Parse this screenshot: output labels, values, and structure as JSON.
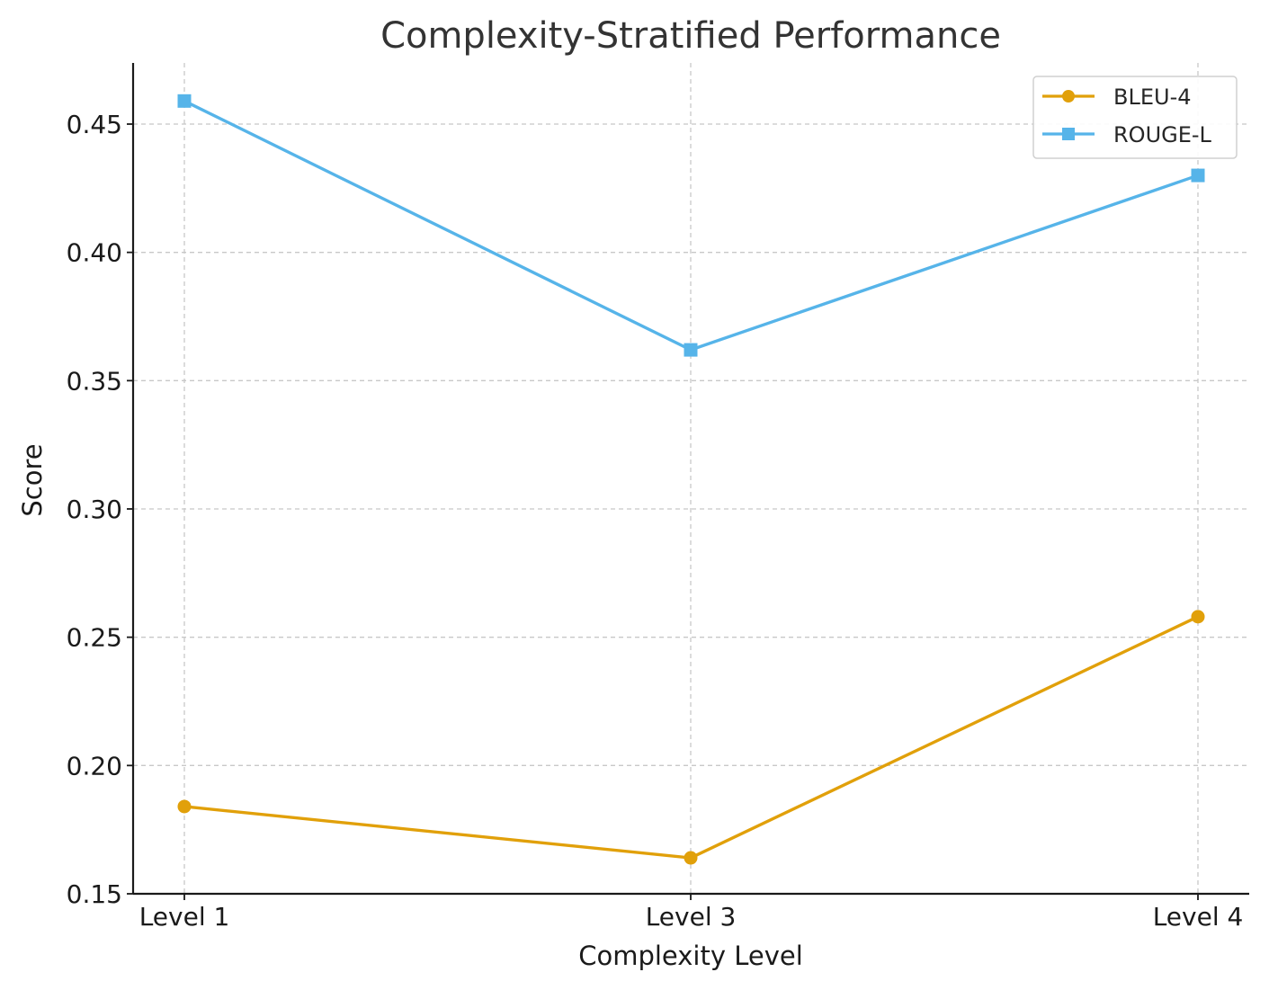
{
  "chart_data": {
    "type": "line",
    "title": "Complexity-Stratified Performance",
    "xlabel": "Complexity Level",
    "ylabel": "Score",
    "categories": [
      "Level 1",
      "Level 3",
      "Level 4"
    ],
    "ylim": [
      0.15,
      0.475
    ],
    "yticks": [
      0.15,
      0.2,
      0.25,
      0.3,
      0.35,
      0.4,
      0.45
    ],
    "ytick_labels": [
      "0.15",
      "0.20",
      "0.25",
      "0.30",
      "0.35",
      "0.40",
      "0.45"
    ],
    "grid": true,
    "legend_position": "top-right",
    "series": [
      {
        "name": "BLEU-4",
        "values": [
          0.184,
          0.164,
          0.258
        ],
        "color": "#E1A00A",
        "marker": "circle"
      },
      {
        "name": "ROUGE-L",
        "values": [
          0.459,
          0.362,
          0.43
        ],
        "color": "#56B4E9",
        "marker": "square"
      }
    ]
  }
}
